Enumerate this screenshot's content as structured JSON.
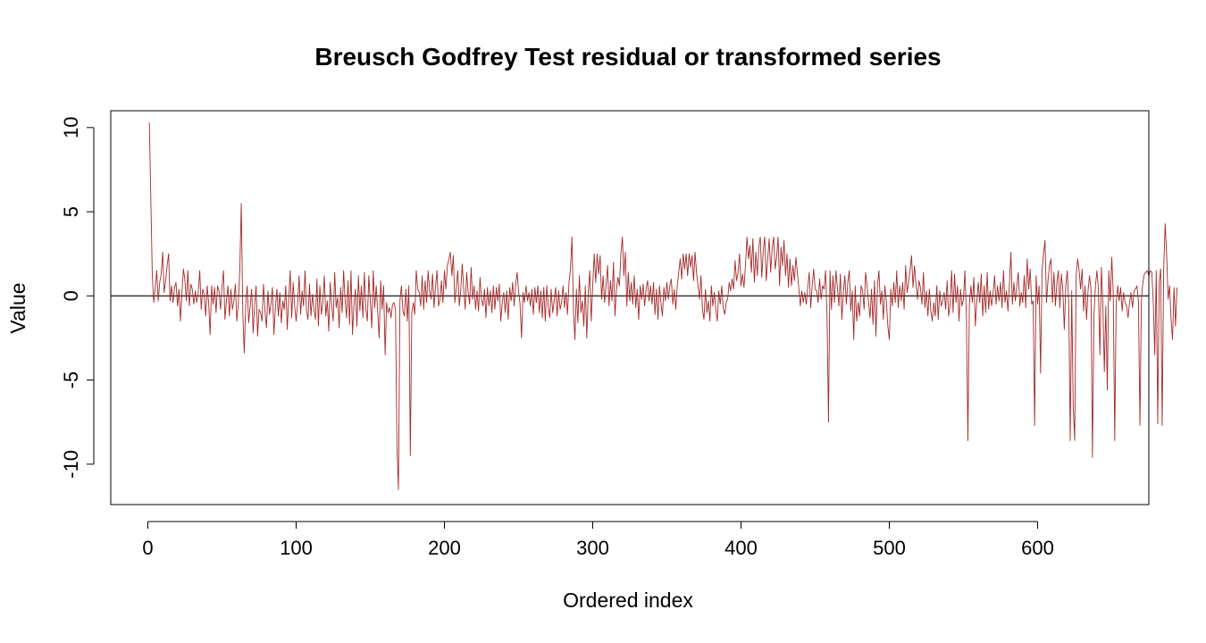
{
  "chart_data": {
    "type": "line",
    "title": "Breusch Godfrey Test residual or transformed series",
    "xlabel": "Ordered index",
    "ylabel": "Value",
    "xlim": [
      -25,
      675
    ],
    "ylim": [
      -12.4,
      11.0
    ],
    "x_ticks": [
      0,
      100,
      200,
      300,
      400,
      500,
      600
    ],
    "y_ticks": [
      -10,
      -5,
      0,
      5,
      10
    ],
    "reference_line_y": 0,
    "series_color": "#a52a2a",
    "series": [
      {
        "x_start": 1,
        "x_step": 1,
        "values": [
          10.3,
          5.8,
          1.2,
          -0.4,
          0.5,
          1.5,
          -0.3,
          0.8,
          1.3,
          2.6,
          0.2,
          0.9,
          1.8,
          2.5,
          -0.3,
          0.6,
          -0.4,
          0.5,
          0.8,
          -0.6,
          0.4,
          -1.5,
          0.2,
          1.6,
          0.9,
          -0.3,
          1.5,
          -0.6,
          0.7,
          0.4,
          -0.5,
          0.3,
          -0.4,
          0.2,
          1.5,
          -0.8,
          0.4,
          0.1,
          -1.2,
          0.6,
          -0.4,
          -2.3,
          0.6,
          -0.5,
          0.5,
          -1.0,
          0.6,
          0.3,
          -0.8,
          0.5,
          1.5,
          -1.4,
          -0.3,
          0.6,
          -1.2,
          0.4,
          -0.8,
          -0.3,
          0.7,
          -1.5,
          -0.5,
          1.5,
          5.5,
          -0.9,
          -3.4,
          -0.5,
          0.6,
          -1.6,
          -0.6,
          0.4,
          -2.2,
          -0.5,
          0.6,
          -2.4,
          -0.8,
          -1.0,
          -1.5,
          0.7,
          -0.9,
          -1.9,
          0.3,
          -1.1,
          -0.5,
          0.5,
          -2.3,
          -0.7,
          0.4,
          -1.2,
          0.2,
          -1.6,
          -0.3,
          -0.8,
          0.6,
          -2.0,
          -0.2,
          1.5,
          -1.3,
          0.8,
          -0.6,
          -1.5,
          -0.4,
          1.2,
          -1.1,
          0.3,
          -0.6,
          1.5,
          -0.9,
          -1.4,
          0.7,
          -1.2,
          0.1,
          -0.8,
          -1.4,
          1.0,
          -1.8,
          0.6,
          -1.1,
          -0.4,
          1.2,
          -1.2,
          -0.3,
          -2.1,
          0.8,
          -0.6,
          -1.5,
          1.4,
          -0.7,
          -0.1,
          -1.9,
          0.5,
          -1.0,
          1.5,
          -0.2,
          -1.3,
          0.9,
          -1.7,
          1.5,
          -2.3,
          -0.5,
          0.4,
          -1.8,
          1.2,
          -0.9,
          0.6,
          -1.3,
          1.4,
          -0.8,
          -1.5,
          1.2,
          -0.3,
          -1.9,
          1.5,
          -0.7,
          0.6,
          -1.0,
          -2.5,
          0.9,
          -0.8,
          0.6,
          -3.5,
          -0.4,
          -1.0,
          -0.7,
          -1.3,
          -0.5,
          -0.4,
          -0.8,
          -9.0,
          -11.5,
          -0.3,
          0.6,
          -0.9,
          -1.2,
          0.4,
          -1.5,
          0.6,
          -9.5,
          -1.0,
          -0.4,
          -1.1,
          1.5,
          0.4,
          0.2,
          -0.6,
          1.2,
          -0.8,
          0.9,
          -0.4,
          1.5,
          0.3,
          -0.2,
          1.3,
          -0.7,
          0.6,
          1.5,
          -0.6,
          -0.2,
          0.9,
          -0.4,
          1.5,
          0.4,
          1.8,
          2.2,
          2.6,
          1.2,
          2.4,
          -0.4,
          0.5,
          1.5,
          -0.6,
          0.3,
          1.9,
          0.4,
          -0.8,
          1.4,
          0.2,
          -0.5,
          1.7,
          -0.2,
          0.6,
          -0.8,
          0.3,
          -0.9,
          1.1,
          -0.2,
          -0.6,
          0.4,
          -1.3,
          0.5,
          -0.6,
          0.3,
          -1.0,
          0.6,
          -0.8,
          0.5,
          -0.3,
          0.7,
          -1.5,
          -0.4,
          0.2,
          -1.0,
          0.3,
          -1.4,
          0.5,
          -0.3,
          0.8,
          -0.6,
          0.6,
          1.4,
          0.3,
          -0.5,
          -2.5,
          0.2,
          -0.4,
          0.6,
          -0.3,
          0.2,
          -0.6,
          0.4,
          -1.1,
          0.5,
          -0.4,
          0.6,
          -1.0,
          0.3,
          -1.3,
          0.5,
          -1.5,
          0.6,
          -0.6,
          -1.3,
          0.4,
          -1.0,
          -0.3,
          0.5,
          -1.2,
          0.3,
          -0.8,
          -0.4,
          0.6,
          -0.7,
          0.2,
          -1.1,
          0.8,
          1.6,
          3.5,
          -0.8,
          -2.6,
          0.4,
          -1.6,
          1.2,
          -1.0,
          -0.3,
          -1.8,
          0.6,
          -2.5,
          0.2,
          1.5,
          -1.5,
          0.6,
          2.5,
          0.8,
          2.5,
          1.3,
          2.4,
          -0.2,
          1.2,
          -0.4,
          0.6,
          1.8,
          -0.6,
          0.9,
          -0.3,
          2.0,
          -1.2,
          0.4,
          1.1,
          0.6,
          2.5,
          3.5,
          1.2,
          2.6,
          -0.6,
          1.4,
          -0.3,
          0.8,
          -0.5,
          1.2,
          -0.7,
          0.4,
          -1.4,
          0.6,
          -0.2,
          0.7,
          -0.6,
          0.4,
          0.9,
          -0.3,
          0.6,
          -0.5,
          0.8,
          -1.1,
          0.4,
          -1.4,
          0.6,
          -0.4,
          -1.2,
          0.5,
          -0.3,
          0.8,
          -0.2,
          0.6,
          1.0,
          -0.5,
          0.4,
          -0.8,
          0.6,
          1.4,
          2.2,
          1.0,
          2.5,
          1.6,
          2.5,
          1.2,
          2.5,
          1.7,
          2.4,
          0.9,
          2.6,
          1.4,
          0.6,
          -0.2,
          1.2,
          -0.8,
          -1.4,
          0.4,
          -1.0,
          -0.3,
          -1.5,
          0.6,
          -0.6,
          0.2,
          -0.8,
          -1.5,
          0.3,
          -0.5,
          0.6,
          -0.7,
          -1.1,
          -0.4,
          -0.2,
          0.8,
          0.3,
          1.0,
          0.4,
          2.1,
          0.9,
          1.4,
          2.5,
          0.6,
          1.3,
          0.5,
          1.8,
          3.5,
          2.2,
          3.0,
          1.4,
          3.4,
          0.8,
          2.6,
          1.2,
          2.9,
          3.5,
          1.1,
          2.7,
          3.5,
          0.9,
          2.2,
          3.4,
          1.4,
          2.8,
          3.5,
          1.6,
          2.3,
          3.5,
          0.6,
          2.9,
          1.8,
          3.3,
          1.2,
          2.5,
          0.5,
          2.2,
          0.6,
          1.8,
          0.9,
          2.3,
          1.4,
          0.4,
          -0.6,
          0.3,
          -0.4,
          0.2,
          -0.5,
          0.5,
          1.4,
          -0.7,
          0.6,
          1.6,
          0.4,
          0.3,
          -0.4,
          1.0,
          -0.2,
          0.6,
          0.4,
          1.5,
          -1.2,
          -7.5,
          1.5,
          -0.8,
          1.2,
          -0.4,
          1.5,
          0.5,
          -0.6,
          1.3,
          -1.4,
          0.2,
          1.2,
          -0.5,
          0.8,
          1.5,
          -0.9,
          0.3,
          -2.6,
          0.6,
          -1.5,
          -0.4,
          -1.2,
          0.6,
          0.3,
          -0.8,
          1.4,
          0.6,
          -0.4,
          -1.3,
          0.4,
          -1.7,
          0.9,
          -2.4,
          0.6,
          1.5,
          -0.5,
          0.3,
          -1.4,
          0.6,
          -0.3,
          -1.8,
          -2.6,
          0.4,
          -0.6,
          0.8,
          -0.4,
          1.5,
          -0.7,
          0.6,
          -0.3,
          0.8,
          -0.8,
          1.8,
          0.2,
          0.8,
          1.5,
          2.4,
          0.5,
          1.8,
          0.7,
          -0.2,
          0.9,
          0.5,
          -0.5,
          1.4,
          -0.7,
          0.3,
          -1.2,
          0.4,
          -0.9,
          -1.5,
          -0.4,
          -1.2,
          0.6,
          -1.4,
          0.3,
          -0.6,
          -0.3,
          0.2,
          -0.8,
          0.9,
          -1.2,
          -0.5,
          1.5,
          -1.0,
          1.3,
          -0.4,
          0.6,
          -1.5,
          0.4,
          -0.6,
          -0.2,
          1.5,
          -1.3,
          -8.6,
          -0.5,
          0.6,
          -0.4,
          1.1,
          -1.8,
          -0.3,
          0.8,
          -0.4,
          1.3,
          -1.2,
          0.6,
          -1.0,
          1.4,
          -0.8,
          0.3,
          -0.6,
          0.2,
          1.2,
          -0.5,
          0.6,
          -0.3,
          0.8,
          -0.7,
          1.5,
          -0.4,
          0.3,
          -0.9,
          0.7,
          2.6,
          -0.5,
          0.8,
          -0.3,
          0.6,
          1.4,
          -0.6,
          0.2,
          -0.4,
          1.2,
          -0.7,
          2.2,
          0.4,
          1.6,
          -0.5,
          -0.3,
          -7.7,
          1.2,
          -0.5,
          0.6,
          -4.6,
          1.5,
          2.5,
          3.3,
          -0.4,
          0.9,
          1.8,
          2.2,
          -0.4,
          1.4,
          -0.6,
          0.8,
          1.5,
          -0.7,
          1.3,
          0.4,
          -2.0,
          0.6,
          1.5,
          -0.5,
          -8.6,
          0.3,
          -6.5,
          -8.6,
          1.2,
          2.2,
          1.5,
          0.4,
          1.6,
          -0.9,
          0.6,
          -1.4,
          0.3,
          1.2,
          0.4,
          -9.6,
          -1.2,
          0.6,
          1.5,
          0.4,
          -3.5,
          1.7,
          -0.5,
          -4.5,
          -0.6,
          -5.6,
          1.5,
          -0.3,
          2.3,
          0.2,
          -8.6,
          -0.4,
          0.6,
          -0.3,
          0.5,
          -0.9,
          0.2,
          -0.4,
          -0.6,
          -1.3,
          -0.4,
          0.2,
          -0.7,
          0.3,
          0.4,
          0.6,
          -0.3,
          -7.7,
          -0.2,
          0.8,
          1.3,
          1.4,
          1.5,
          1.2,
          1.5,
          1.4,
          -0.4,
          -3.5,
          1.5,
          -7.6,
          0.8,
          1.6,
          -7.7,
          1.5,
          4.3,
          2.5,
          -0.2,
          0.6,
          -1.4,
          -2.6,
          0.5,
          -1.8,
          0.5
        ]
      }
    ]
  }
}
